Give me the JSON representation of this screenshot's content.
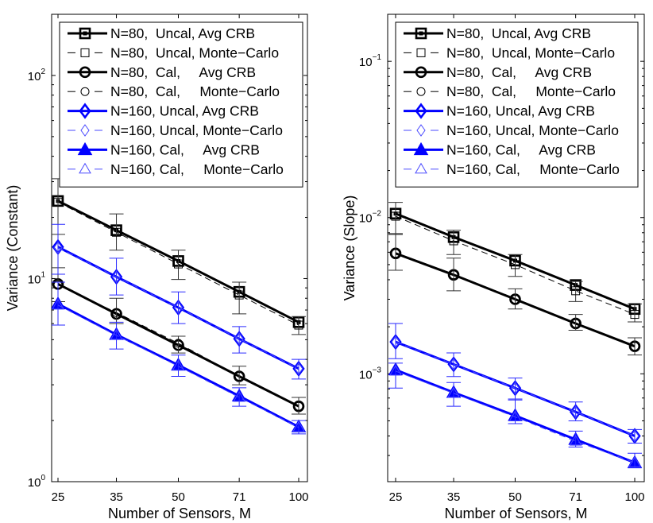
{
  "chart_data": [
    {
      "type": "line",
      "title": "",
      "xlabel": "Number of Sensors, M",
      "ylabel": "Variance (Constant)",
      "xscale": "log",
      "yscale": "log",
      "x": [
        25,
        35,
        50,
        71,
        100
      ],
      "xticks": [
        "25",
        "35",
        "50",
        "71",
        "100"
      ],
      "xlim": [
        24,
        104
      ],
      "ylim": [
        1,
        200
      ],
      "yticks": [
        {
          "base": "10",
          "exp": "0",
          "value": 1
        },
        {
          "base": "10",
          "exp": "1",
          "value": 10
        },
        {
          "base": "10",
          "exp": "2",
          "value": 100
        }
      ],
      "grid": false,
      "legend_position": "top",
      "series": [
        {
          "name": "N=80,  Uncal, Avg CRB",
          "color": "#000000",
          "style": "solid",
          "marker": "square",
          "values": [
            24.1,
            17.3,
            12.2,
            8.6,
            6.1
          ]
        },
        {
          "name": "N=80,  Uncal, Monte−Carlo",
          "color": "#000000",
          "style": "dashed",
          "marker": "square-open",
          "values": [
            23.8,
            16.9,
            11.8,
            8.3,
            5.9
          ],
          "err_low": [
            16.5,
            13.8,
            9.9,
            6.7,
            5.3
          ],
          "err_high": [
            31.0,
            20.8,
            13.8,
            9.6,
            6.5
          ]
        },
        {
          "name": "N=80,  Cal,     Avg CRB",
          "color": "#000000",
          "style": "solid",
          "marker": "circle",
          "values": [
            9.4,
            6.7,
            4.7,
            3.3,
            2.35
          ]
        },
        {
          "name": "N=80,  Cal,     Monte−Carlo",
          "color": "#000000",
          "style": "dashed",
          "marker": "circle-open",
          "values": [
            9.3,
            6.8,
            4.8,
            3.3,
            2.35
          ],
          "err_low": [
            7.7,
            6.0,
            4.3,
            3.0,
            2.15
          ],
          "err_high": [
            11.3,
            8.0,
            5.2,
            3.7,
            2.6
          ]
        },
        {
          "name": "N=160, Uncal, Avg CRB",
          "color": "#0000ff",
          "style": "solid",
          "marker": "diamond",
          "values": [
            14.3,
            10.2,
            7.2,
            5.05,
            3.6
          ]
        },
        {
          "name": "N=160, Uncal, Monte−Carlo",
          "color": "#0000ff",
          "style": "dashed",
          "marker": "diamond-open",
          "values": [
            14.2,
            10.2,
            7.2,
            5.05,
            3.6
          ],
          "err_low": [
            10.5,
            8.3,
            6.0,
            4.3,
            3.2
          ],
          "err_high": [
            18.5,
            12.6,
            8.6,
            5.8,
            4.0
          ]
        },
        {
          "name": "N=160, Cal,     Avg CRB",
          "color": "#0000ff",
          "style": "solid",
          "marker": "triangle",
          "values": [
            7.5,
            5.3,
            3.75,
            2.64,
            1.86
          ]
        },
        {
          "name": "N=160, Cal,     Monte−Carlo",
          "color": "#0000ff",
          "style": "dashed",
          "marker": "triangle-open",
          "values": [
            7.4,
            5.25,
            3.7,
            2.6,
            1.85
          ],
          "err_low": [
            5.9,
            4.5,
            3.3,
            2.35,
            1.72
          ],
          "err_high": [
            9.6,
            6.1,
            4.2,
            2.9,
            2.0
          ]
        }
      ]
    },
    {
      "type": "line",
      "title": "",
      "xlabel": "Number of Sensors, M",
      "ylabel": "Variance (Slope)",
      "xscale": "log",
      "yscale": "log",
      "x": [
        25,
        35,
        50,
        71,
        100
      ],
      "xticks": [
        "25",
        "35",
        "50",
        "71",
        "100"
      ],
      "xlim": [
        24,
        104
      ],
      "ylim": [
        0.000204,
        0.2
      ],
      "yticks": [
        {
          "base": "10",
          "exp": "−3",
          "value": 0.001
        },
        {
          "base": "10",
          "exp": "−2",
          "value": 0.01
        },
        {
          "base": "10",
          "exp": "−1",
          "value": 0.1
        }
      ],
      "grid": false,
      "legend_position": "top",
      "series": [
        {
          "name": "N=80,  Uncal, Avg CRB",
          "color": "#000000",
          "style": "solid",
          "marker": "square",
          "values": [
            0.0106,
            0.0075,
            0.0053,
            0.0037,
            0.0026
          ]
        },
        {
          "name": "N=80,  Uncal, Monte−Carlo",
          "color": "#000000",
          "style": "dashed",
          "marker": "square-open",
          "values": [
            0.0102,
            0.0071,
            0.005,
            0.0034,
            0.0024
          ],
          "err_low": [
            0.0078,
            0.0058,
            0.0042,
            0.0029,
            0.00215
          ],
          "err_high": [
            0.0125,
            0.0083,
            0.0058,
            0.0039,
            0.0028
          ]
        },
        {
          "name": "N=80,  Cal,     Avg CRB",
          "color": "#000000",
          "style": "solid",
          "marker": "circle",
          "values": [
            0.0059,
            0.0043,
            0.003,
            0.0021,
            0.0015
          ]
        },
        {
          "name": "N=80,  Cal,     Monte−Carlo",
          "color": "#000000",
          "style": "dashed",
          "marker": "circle-open",
          "values": [
            0.0059,
            0.0043,
            0.003,
            0.0021,
            0.0015
          ],
          "err_low": [
            0.0046,
            0.0034,
            0.0026,
            0.0019,
            0.00132
          ],
          "err_high": [
            0.0079,
            0.0055,
            0.0035,
            0.0024,
            0.0017
          ]
        },
        {
          "name": "N=160, Uncal, Avg CRB",
          "color": "#0000ff",
          "style": "solid",
          "marker": "diamond",
          "values": [
            0.0016,
            0.00115,
            0.00081,
            0.00057,
            0.0004
          ]
        },
        {
          "name": "N=160, Uncal, Monte−Carlo",
          "color": "#0000ff",
          "style": "dashed",
          "marker": "diamond-open",
          "values": [
            0.0016,
            0.00115,
            0.00081,
            0.00057,
            0.0004
          ],
          "err_low": [
            0.00125,
            0.00096,
            0.00068,
            0.0005,
            0.00036
          ],
          "err_high": [
            0.0021,
            0.00136,
            0.00094,
            0.00066,
            0.00044
          ]
        },
        {
          "name": "N=160, Cal,     Avg CRB",
          "color": "#0000ff",
          "style": "solid",
          "marker": "triangle",
          "values": [
            0.00106,
            0.00076,
            0.00054,
            0.00038,
            0.00027
          ]
        },
        {
          "name": "N=160, Cal,     Monte−Carlo",
          "color": "#0000ff",
          "style": "dashed",
          "marker": "triangle-open",
          "values": [
            0.00104,
            0.00075,
            0.00053,
            0.00037,
            0.00027
          ],
          "err_low": [
            0.00081,
            0.00062,
            0.00048,
            0.00034,
            0.00025
          ],
          "err_high": [
            0.00117,
            0.00088,
            0.00069,
            0.00043,
            0.00031
          ]
        }
      ]
    }
  ]
}
